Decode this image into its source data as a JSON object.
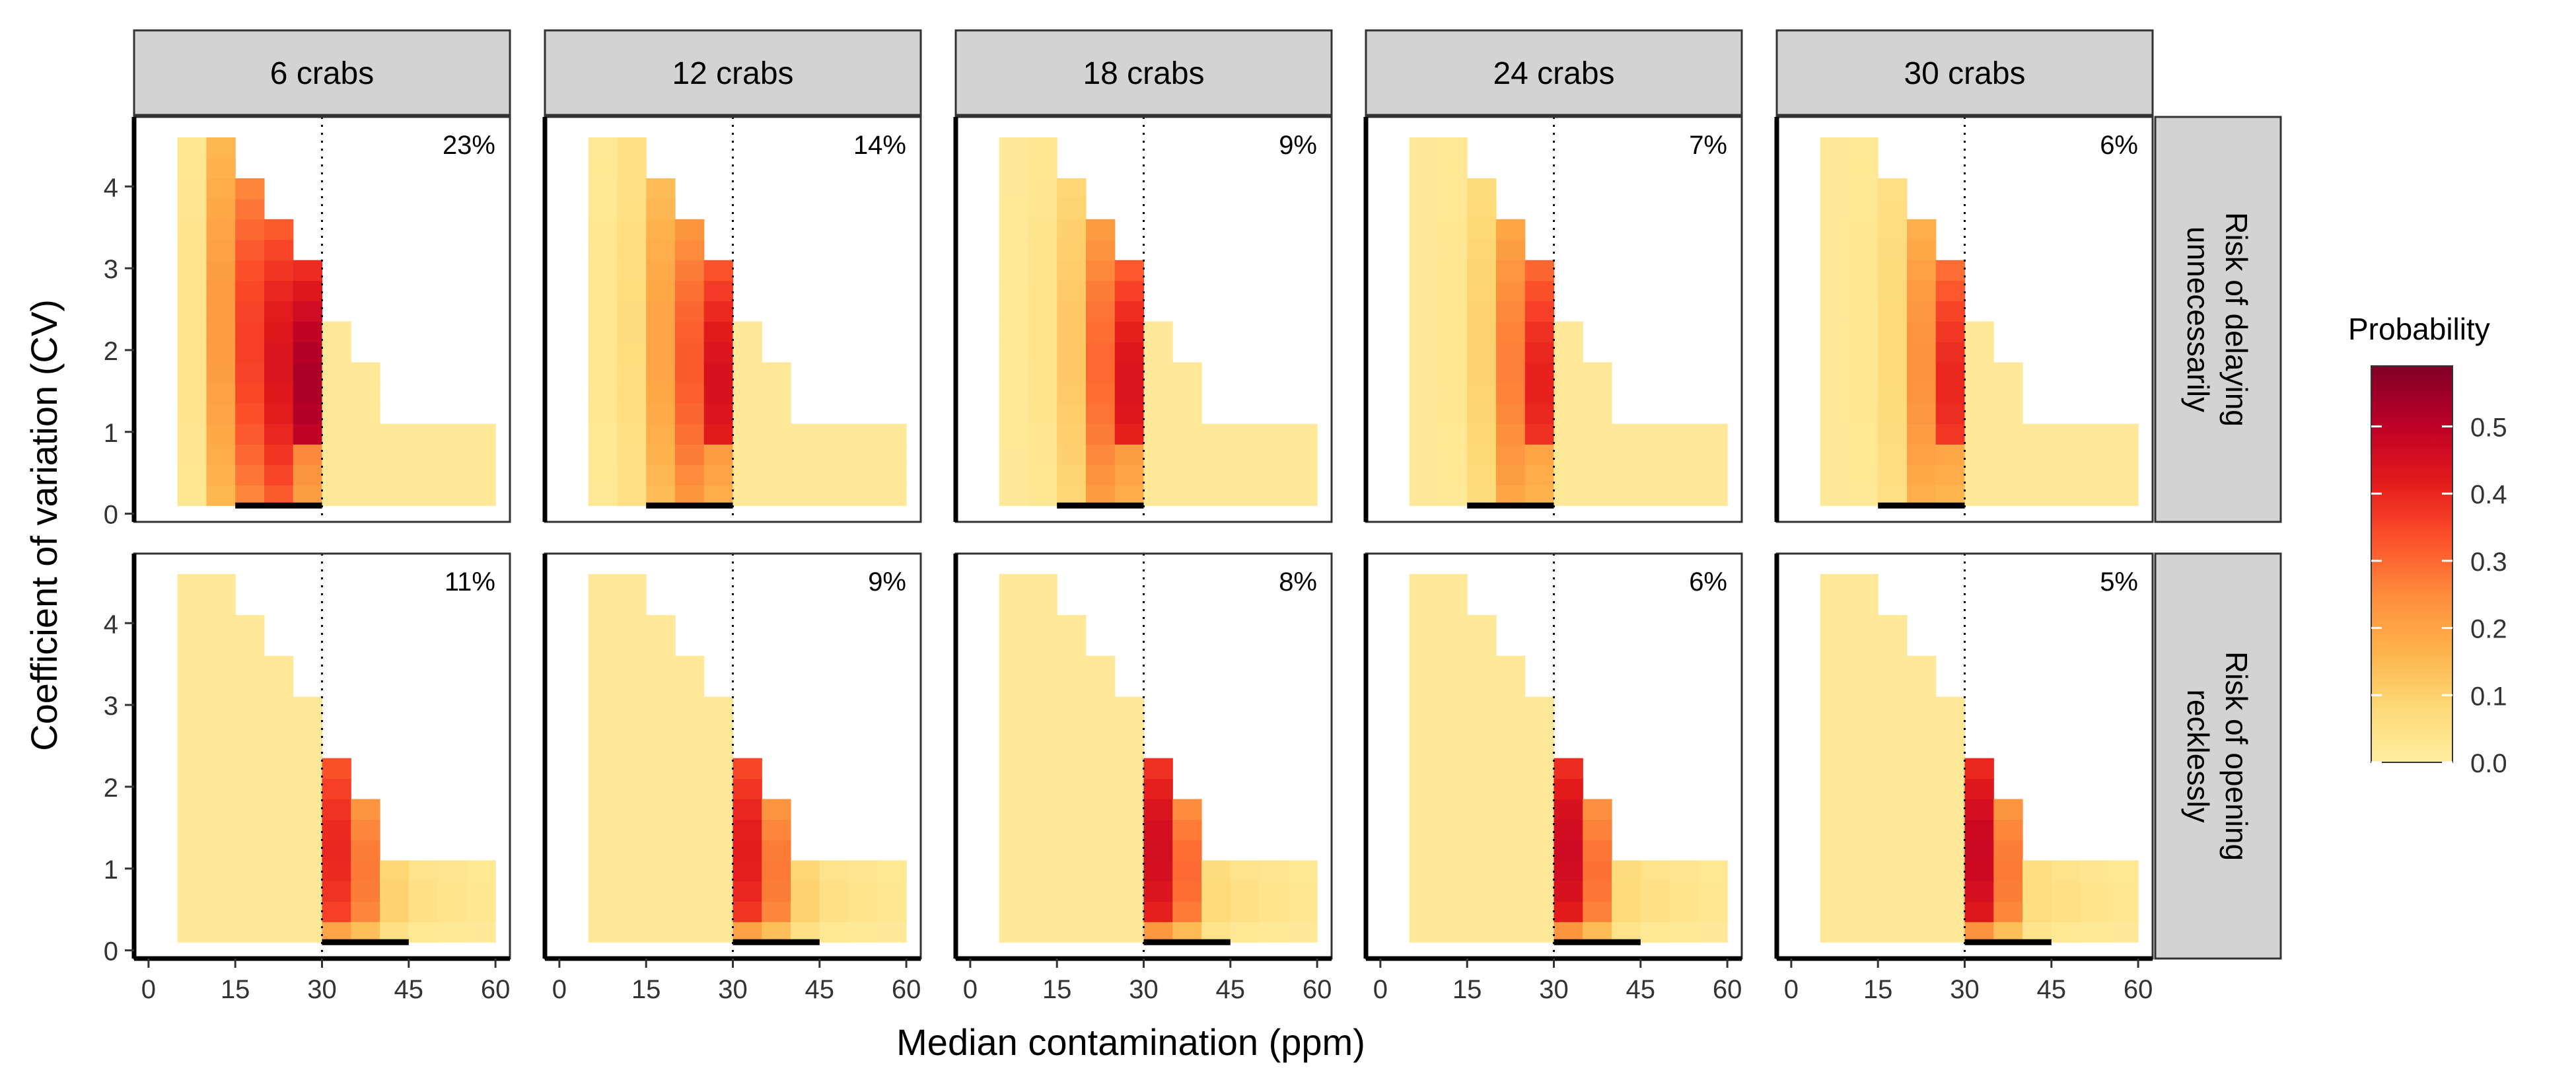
{
  "chart_data": {
    "type": "heatmap",
    "facet_columns": [
      "6 crabs",
      "12 crabs",
      "18 crabs",
      "24 crabs",
      "30 crabs"
    ],
    "facet_rows": [
      "Risk of delaying unnecessarily",
      "Risk of opening recklessly"
    ],
    "facet_row_lines": [
      [
        "Risk of delaying",
        "unnecessarily"
      ],
      [
        "Risk of opening",
        "recklessly"
      ]
    ],
    "xlabel": "Median contamination (ppm)",
    "ylabel": "Coefficient of variation (CV)",
    "x_ticks": [
      0,
      15,
      30,
      45,
      60
    ],
    "y_ticks": [
      0,
      1,
      2,
      3,
      4
    ],
    "xlim": [
      -2.5,
      62.5
    ],
    "ylim": [
      -0.1,
      4.85
    ],
    "threshold_ppm": 30,
    "grid": false,
    "legend": {
      "title": "Probability",
      "position": "right",
      "ticks": [
        "0.0",
        "0.1",
        "0.2",
        "0.3",
        "0.4",
        "0.5"
      ],
      "range": [
        0,
        0.59
      ]
    },
    "colors": [
      "#FFEDA0",
      "#FED976",
      "#FEB24C",
      "#FD8D3C",
      "#FC4E2A",
      "#E31A1C",
      "#BD0026",
      "#800026"
    ],
    "panel_labels": [
      [
        "23%",
        "14%",
        "9%",
        "7%",
        "6%"
      ],
      [
        "11%",
        "9%",
        "8%",
        "6%",
        "5%"
      ]
    ],
    "domain_columns": {
      "x_bin_width_ppm": 5,
      "x_start": [
        5,
        10,
        15,
        20,
        25,
        30,
        35,
        40,
        45,
        50,
        55
      ],
      "cv_max": [
        4.6,
        4.6,
        4.1,
        3.6,
        3.1,
        2.35,
        1.85,
        1.1,
        1.1,
        1.1,
        1.1
      ],
      "cv_min": 0.1,
      "cv_bin": 0.25
    },
    "delay_peak_probability": {
      "6 crabs": [
        0.04,
        0.22,
        0.36,
        0.44,
        0.53
      ],
      "12 crabs": [
        0.03,
        0.07,
        0.2,
        0.32,
        0.45
      ],
      "18 crabs": [
        0.02,
        0.04,
        0.12,
        0.3,
        0.44
      ],
      "24 crabs": [
        0.01,
        0.03,
        0.1,
        0.27,
        0.41
      ],
      "30 crabs": [
        0.01,
        0.03,
        0.08,
        0.24,
        0.4
      ]
    },
    "reckless_peak_probability": {
      "6 crabs": [
        0.4,
        0.28,
        0.1,
        0.05,
        0.04,
        0.03
      ],
      "12 crabs": [
        0.42,
        0.28,
        0.1,
        0.05,
        0.04,
        0.03
      ],
      "18 crabs": [
        0.46,
        0.3,
        0.08,
        0.05,
        0.04,
        0.03
      ],
      "24 crabs": [
        0.47,
        0.29,
        0.08,
        0.05,
        0.04,
        0.03
      ],
      "30 crabs": [
        0.48,
        0.28,
        0.07,
        0.05,
        0.04,
        0.03
      ]
    },
    "black_bars": {
      "delay": [
        15,
        30
      ],
      "reckless": [
        30,
        45
      ],
      "cv": 0.1
    }
  }
}
